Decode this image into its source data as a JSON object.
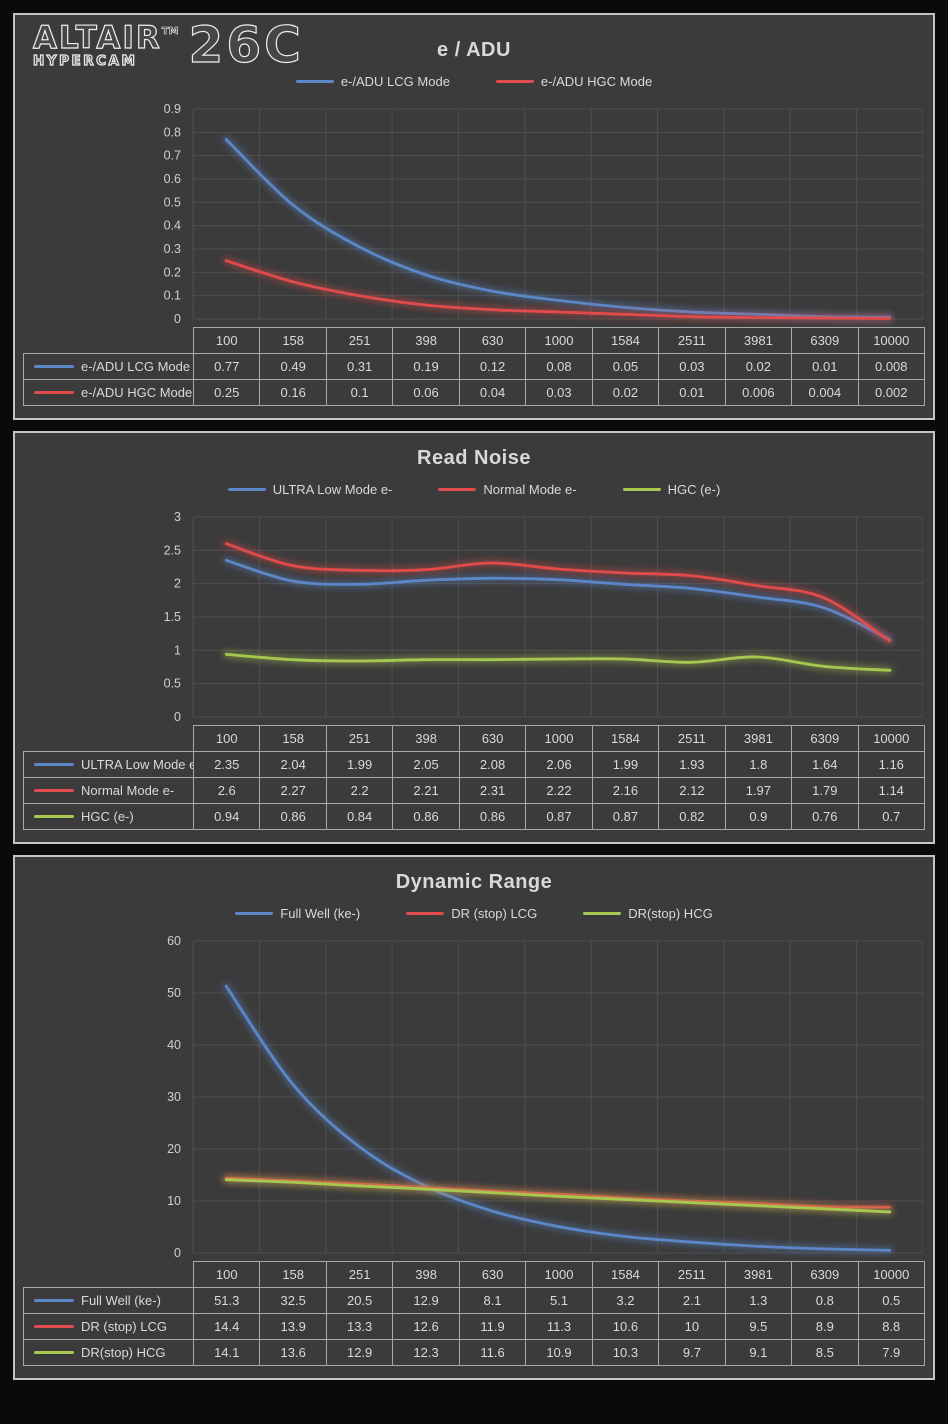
{
  "logo": {
    "brand": "ALTAIR",
    "trademark": "TM",
    "sub_brand": "HYPERCAM",
    "model": "26C"
  },
  "colors": {
    "page_bg": "#0a0a0a",
    "panel_bg": "#3b3b3b",
    "panel_border": "#c4c4c4",
    "gridline": "#4f4f4f",
    "axis_text": "#cfcfcf",
    "table_border": "#a8a8a8",
    "text": "#d9d9d9",
    "series_blue": "#5b87c8",
    "series_red": "#e14b4b",
    "series_green": "#a6c850"
  },
  "chart_data": [
    {
      "type": "line",
      "title": "e / ADU",
      "legend_position": "top",
      "grid": true,
      "categories": [
        "100",
        "158",
        "251",
        "398",
        "630",
        "1000",
        "1584",
        "2511",
        "3981",
        "6309",
        "10000"
      ],
      "ylim": [
        0,
        0.9
      ],
      "yticks": [
        0,
        0.1,
        0.2,
        0.3,
        0.4,
        0.5,
        0.6,
        0.7,
        0.8,
        0.9
      ],
      "ytick_labels": [
        "0",
        "0.1",
        "0.2",
        "0.3",
        "0.4",
        "0.5",
        "0.6",
        "0.7",
        "0.8",
        "0.9"
      ],
      "series": [
        {
          "name": "e-/ADU LCG Mode",
          "color": "#5b87c8",
          "values": [
            0.77,
            0.49,
            0.31,
            0.19,
            0.12,
            0.08,
            0.05,
            0.03,
            0.02,
            0.01,
            0.008
          ]
        },
        {
          "name": "e-/ADU HGC Mode",
          "color": "#e14b4b",
          "values": [
            0.25,
            0.16,
            0.1,
            0.06,
            0.04,
            0.03,
            0.02,
            0.01,
            0.006,
            0.004,
            0.002
          ]
        }
      ]
    },
    {
      "type": "line",
      "title": "Read Noise",
      "legend_position": "top",
      "grid": true,
      "categories": [
        "100",
        "158",
        "251",
        "398",
        "630",
        "1000",
        "1584",
        "2511",
        "3981",
        "6309",
        "10000"
      ],
      "ylim": [
        0,
        3
      ],
      "yticks": [
        0,
        0.5,
        1,
        1.5,
        2,
        2.5,
        3
      ],
      "ytick_labels": [
        "0",
        "0.5",
        "1",
        "1.5",
        "2",
        "2.5",
        "3"
      ],
      "series": [
        {
          "name": "ULTRA Low Mode e-",
          "color": "#5b87c8",
          "values": [
            2.35,
            2.04,
            1.99,
            2.05,
            2.08,
            2.06,
            1.99,
            1.93,
            1.8,
            1.64,
            1.16
          ]
        },
        {
          "name": "Normal Mode e-",
          "color": "#e14b4b",
          "values": [
            2.6,
            2.27,
            2.2,
            2.21,
            2.31,
            2.22,
            2.16,
            2.12,
            1.97,
            1.79,
            1.14
          ]
        },
        {
          "name": "HGC (e-)",
          "color": "#a6c850",
          "values": [
            0.94,
            0.86,
            0.84,
            0.86,
            0.86,
            0.87,
            0.87,
            0.82,
            0.9,
            0.76,
            0.7
          ]
        }
      ]
    },
    {
      "type": "line",
      "title": "Dynamic Range",
      "legend_position": "top",
      "grid": true,
      "categories": [
        "100",
        "158",
        "251",
        "398",
        "630",
        "1000",
        "1584",
        "2511",
        "3981",
        "6309",
        "10000"
      ],
      "ylim": [
        0,
        60
      ],
      "yticks": [
        0,
        10,
        20,
        30,
        40,
        50,
        60
      ],
      "ytick_labels": [
        "0",
        "10",
        "20",
        "30",
        "40",
        "50",
        "60"
      ],
      "series": [
        {
          "name": "Full Well (ke-)",
          "color": "#5b87c8",
          "values": [
            51.3,
            32.5,
            20.5,
            12.9,
            8.1,
            5.1,
            3.2,
            2.1,
            1.3,
            0.8,
            0.5
          ]
        },
        {
          "name": "DR (stop) LCG",
          "color": "#e14b4b",
          "values": [
            14.4,
            13.9,
            13.3,
            12.6,
            11.9,
            11.3,
            10.6,
            10,
            9.5,
            8.9,
            8.8
          ]
        },
        {
          "name": "DR(stop) HCG",
          "color": "#a6c850",
          "values": [
            14.1,
            13.6,
            12.9,
            12.3,
            11.6,
            10.9,
            10.3,
            9.7,
            9.1,
            8.5,
            7.9
          ]
        }
      ]
    }
  ]
}
